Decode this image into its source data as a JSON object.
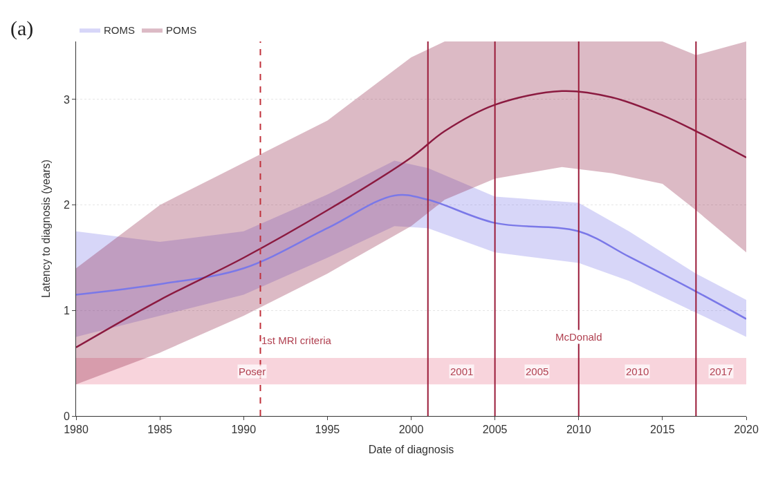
{
  "chart_data": {
    "type": "line",
    "xlabel": "Date of diagnosis",
    "ylabel": "Latency to diagnosis (years)",
    "series": [
      {
        "name": "ROMS",
        "color": "#7a78e8",
        "x": [
          1980,
          1985,
          1990,
          1995,
          1999,
          2001,
          2005,
          2010,
          2013,
          2017,
          2020
        ],
        "values": [
          1.15,
          1.25,
          1.4,
          1.78,
          2.09,
          2.05,
          1.83,
          1.75,
          1.51,
          1.18,
          0.92
        ],
        "lower": [
          0.75,
          0.95,
          1.15,
          1.5,
          1.8,
          1.78,
          1.55,
          1.45,
          1.28,
          0.98,
          0.75
        ],
        "upper": [
          1.75,
          1.65,
          1.75,
          2.1,
          2.42,
          2.35,
          2.08,
          2.02,
          1.75,
          1.35,
          1.1
        ]
      },
      {
        "name": "POMS",
        "color": "#8b1a40",
        "x": [
          1980,
          1985,
          1990,
          1995,
          2000,
          2002,
          2005,
          2009,
          2012,
          2015,
          2017,
          2020
        ],
        "values": [
          0.65,
          1.1,
          1.5,
          1.95,
          2.45,
          2.7,
          2.95,
          3.08,
          3.02,
          2.85,
          2.7,
          2.45
        ],
        "lower": [
          0.3,
          0.6,
          0.95,
          1.35,
          1.8,
          2.05,
          2.25,
          2.36,
          2.3,
          2.2,
          1.95,
          1.55
        ],
        "upper": [
          1.4,
          2.0,
          2.4,
          2.8,
          3.4,
          3.55,
          3.55,
          3.55,
          3.55,
          3.55,
          3.42,
          3.55
        ]
      }
    ],
    "xlim": [
      1980,
      2020
    ],
    "xticks": [
      1980,
      1985,
      1990,
      1995,
      2000,
      2005,
      2010,
      2015,
      2020
    ],
    "ylim": [
      0,
      3.55
    ],
    "yticks": [
      0,
      1,
      2,
      3
    ],
    "grid": "y",
    "legend": "top left",
    "ref_lines": [
      {
        "axis": "x",
        "value": 1991,
        "label": "1st MRI criteria",
        "line_style": "dashed",
        "color": "#c0303a"
      },
      {
        "axis": "x",
        "value": 2001,
        "color": "#9a1a38"
      },
      {
        "axis": "x",
        "value": 2005,
        "color": "#9a1a38"
      },
      {
        "axis": "x",
        "value": 2010,
        "color": "#9a1a38"
      },
      {
        "axis": "x",
        "value": 2017,
        "color": "#9a1a38"
      }
    ],
    "bands": [
      {
        "axis": "x",
        "from": 1980,
        "to": 2001,
        "label": "Poser",
        "color": "#f4b8c4"
      },
      {
        "axis": "x",
        "from": 2001,
        "to": 2005,
        "label": "2001",
        "color": "#f4b8c4"
      },
      {
        "axis": "x",
        "from": 2005,
        "to": 2010,
        "label": "2005",
        "color": "#f4b8c4"
      },
      {
        "axis": "x",
        "from": 2010,
        "to": 2017,
        "label": "2010",
        "color": "#f4b8c4"
      },
      {
        "axis": "x",
        "from": 2017,
        "to": 2020,
        "label": "2017",
        "color": "#f4b8c4"
      }
    ],
    "annotations": [
      "(a)",
      {
        "text": "McDonald",
        "x": 2010,
        "y": 0.75
      }
    ]
  }
}
